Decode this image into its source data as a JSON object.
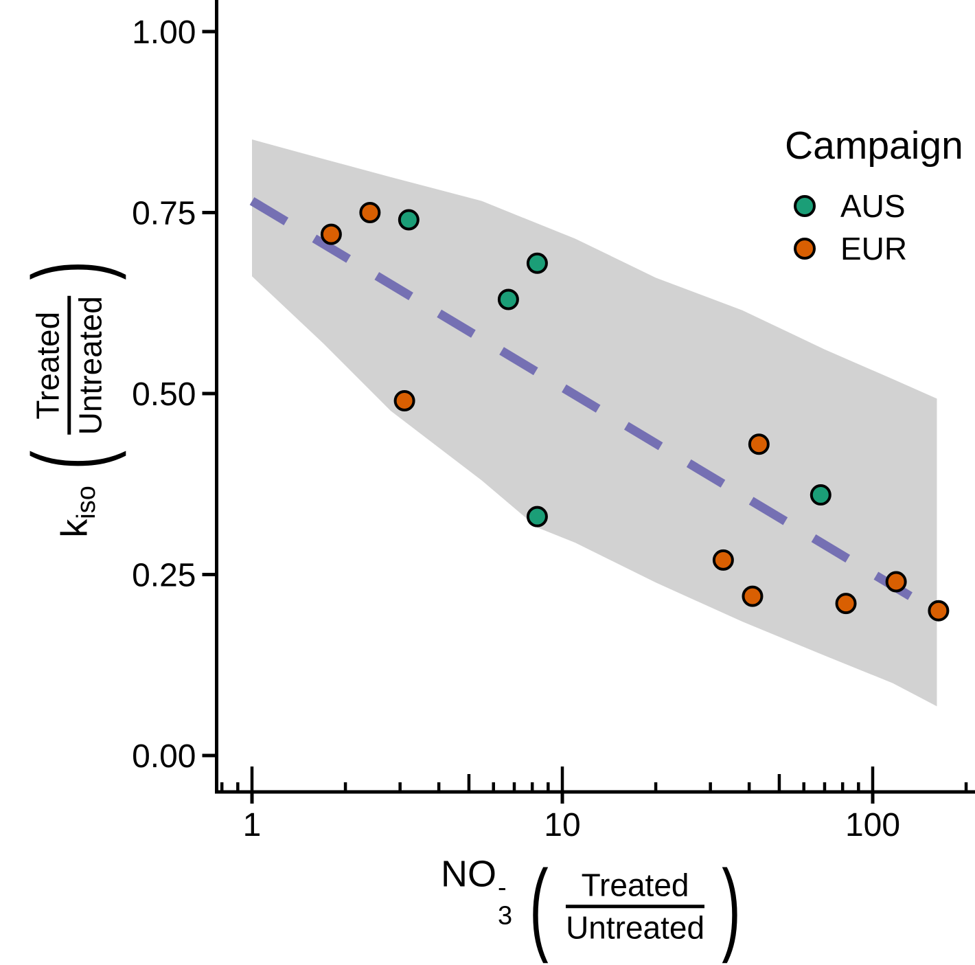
{
  "figure": {
    "y_axis_label": {
      "symbol": "k",
      "symbol_sub": "iso",
      "open_paren": "(",
      "close_paren": ")",
      "frac_numerator": "Treated",
      "frac_denominator": "Untreated"
    },
    "x_axis_label": {
      "molecule": "NO",
      "molecule_sub": "3",
      "molecule_sup": "-",
      "open_paren": "(",
      "close_paren": ")",
      "frac_numerator": "Treated",
      "frac_denominator": "Untreated"
    }
  },
  "legend": {
    "title": "Campaign",
    "items": [
      {
        "label": "AUS",
        "color": "#1b9e77"
      },
      {
        "label": "EUR",
        "color": "#d95f02"
      }
    ]
  },
  "chart_data": {
    "type": "scatter",
    "title": "",
    "xlabel": "NO3- (Treated/Untreated)",
    "ylabel": "k_iso (Treated/Untreated)",
    "x_scale": "log10",
    "xlim": [
      0.8,
      210
    ],
    "ylim": [
      0.0,
      1.0
    ],
    "grid": "off",
    "legend_position": "inside-top-right",
    "y_ticks": [
      {
        "value": 0.0,
        "label": "0.00"
      },
      {
        "value": 0.25,
        "label": "0.25"
      },
      {
        "value": 0.5,
        "label": "0.50"
      },
      {
        "value": 0.75,
        "label": "0.75"
      },
      {
        "value": 1.0,
        "label": "1.00"
      }
    ],
    "x_ticks_major": [
      {
        "value": 1,
        "label": "1"
      },
      {
        "value": 10,
        "label": "10"
      },
      {
        "value": 100,
        "label": "100"
      }
    ],
    "log_ticks_long": [
      1,
      10,
      100
    ],
    "log_ticks_mid": [
      5,
      50
    ],
    "log_ticks_short": [
      0.8,
      0.9,
      2,
      3,
      4,
      6,
      7,
      8,
      9,
      20,
      30,
      40,
      60,
      70,
      80,
      90,
      200
    ],
    "series": [
      {
        "name": "AUS",
        "color": "#1b9e77",
        "points": [
          [
            3.2,
            0.74
          ],
          [
            6.7,
            0.63
          ],
          [
            8.3,
            0.68
          ],
          [
            8.3,
            0.33
          ],
          [
            68,
            0.36
          ]
        ]
      },
      {
        "name": "EUR",
        "color": "#d95f02",
        "points": [
          [
            1.8,
            0.72
          ],
          [
            2.4,
            0.75
          ],
          [
            3.1,
            0.49
          ],
          [
            33,
            0.27
          ],
          [
            43,
            0.43
          ],
          [
            41,
            0.22
          ],
          [
            82,
            0.21
          ],
          [
            119,
            0.24
          ],
          [
            163,
            0.2
          ]
        ]
      }
    ],
    "regression_line": {
      "style": "dashed",
      "color": "#7570b3",
      "x_start": 1,
      "y_start": 0.766,
      "x_end": 161,
      "y_end": 0.198
    },
    "confidence_band": {
      "color": "#d2d2d2",
      "x": [
        1,
        1.7,
        2.8,
        5.5,
        8.3,
        11,
        20,
        38,
        70,
        116,
        161
      ],
      "upper": [
        0.851,
        0.824,
        0.799,
        0.766,
        0.735,
        0.714,
        0.66,
        0.615,
        0.561,
        0.52,
        0.493
      ],
      "lower": [
        0.662,
        0.569,
        0.476,
        0.38,
        0.315,
        0.294,
        0.239,
        0.185,
        0.138,
        0.1,
        0.068
      ]
    }
  }
}
